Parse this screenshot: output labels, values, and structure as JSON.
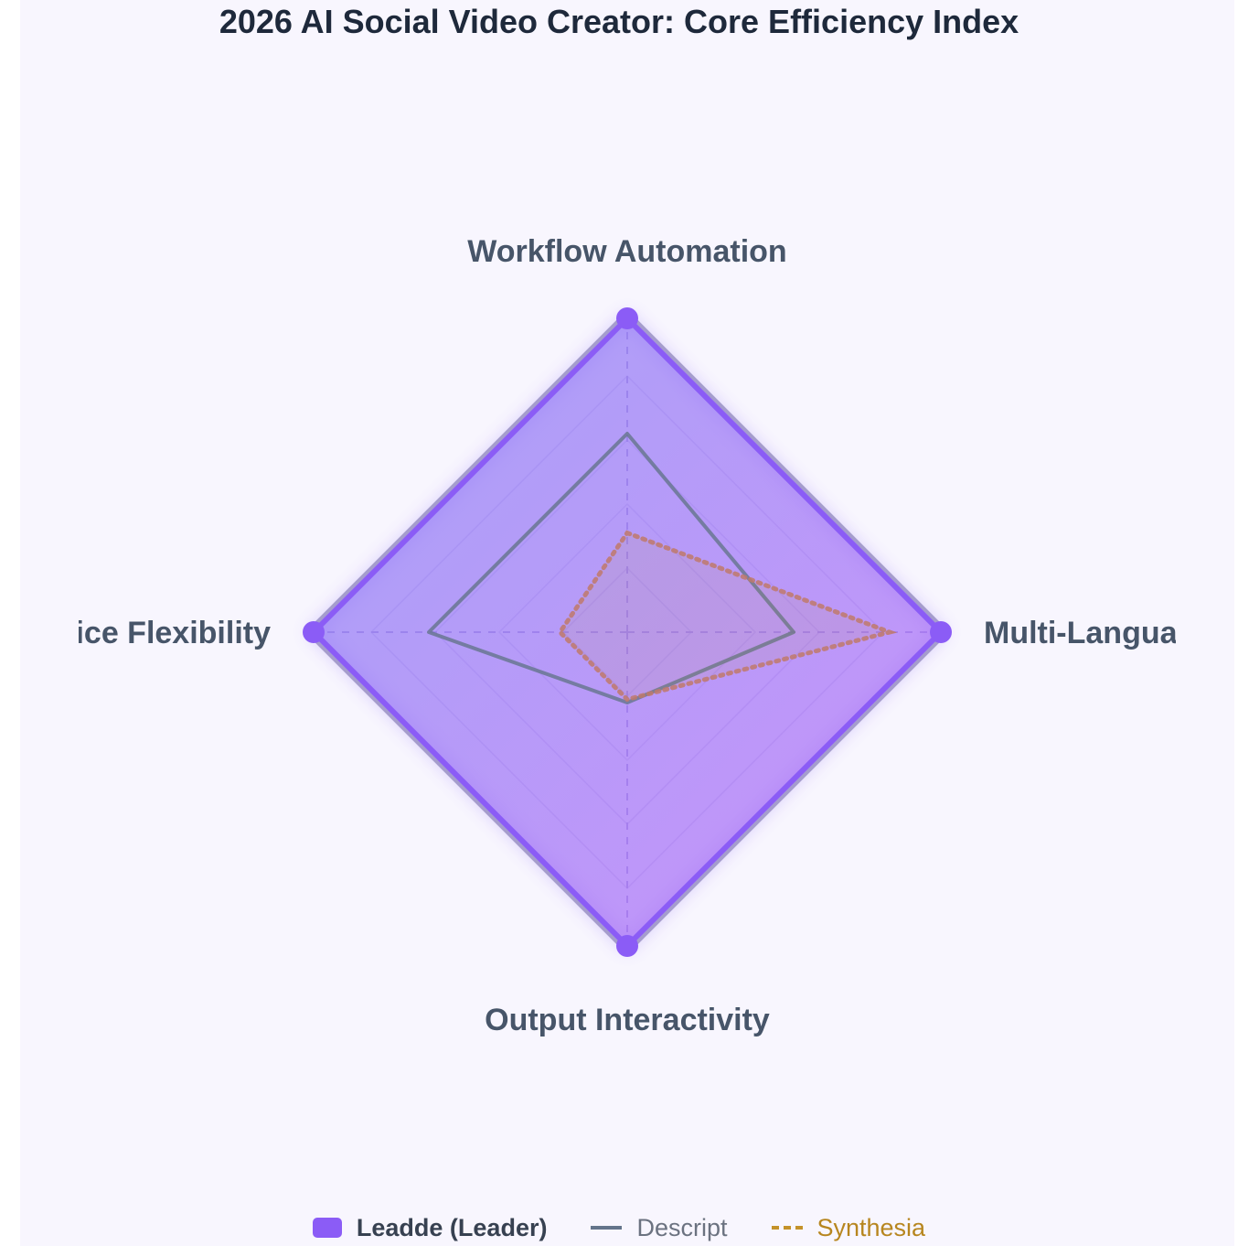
{
  "chart_data": {
    "type": "radar",
    "title": "2026 AI Social Video Creator: Core Efficiency Index",
    "axes": [
      "Workflow Automation",
      "Multi-Language",
      "Output Interactivity",
      "Voice Flexibility"
    ],
    "range": [
      0,
      100
    ],
    "grid_levels": [
      20,
      40,
      60,
      80,
      100
    ],
    "series": [
      {
        "name": "Leadde (Leader)",
        "values": [
          98,
          98,
          98,
          98
        ],
        "color": "#8b5cf6",
        "style": "filled"
      },
      {
        "name": "Descript",
        "values": [
          62,
          52,
          22,
          62
        ],
        "color": "#64748b",
        "style": "solid"
      },
      {
        "name": "Synthesia",
        "values": [
          31,
          82,
          21,
          21
        ],
        "color": "#c4922a",
        "style": "dotted"
      }
    ],
    "legend_position": "bottom"
  }
}
